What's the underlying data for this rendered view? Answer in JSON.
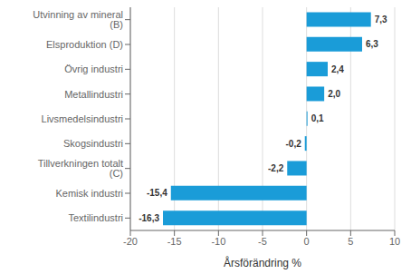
{
  "chart_data": {
    "type": "bar",
    "orientation": "horizontal",
    "categories": [
      "Textilindustri",
      "Kemisk industri",
      "Tillverkningen totalt (C)",
      "Skogsindustri",
      "Livsmedelsindustri",
      "Metallindustri",
      "Övrig industri",
      "Elsproduktion (D)",
      "Utvinning av mineral (B)"
    ],
    "values": [
      -16.3,
      -15.4,
      -2.2,
      -0.2,
      0.1,
      2.0,
      2.4,
      6.3,
      7.3
    ],
    "value_labels": [
      "-16,3",
      "-15,4",
      "-2,2",
      "-0,2",
      "0,1",
      "2,0",
      "2,4",
      "6,3",
      "7,3"
    ],
    "data_labels": true,
    "color": "#1a9cd8",
    "xlabel": "Årsförändring %",
    "xlim": [
      -20,
      10
    ],
    "xticks": [
      -20,
      -15,
      -10,
      -5,
      0,
      5,
      10
    ],
    "grid": true
  }
}
